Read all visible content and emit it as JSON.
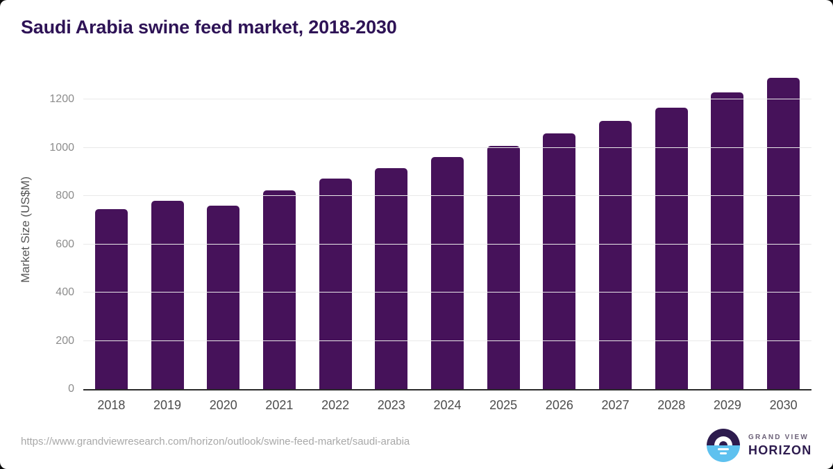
{
  "page": {
    "title": "Saudi Arabia swine feed market, 2018-2030",
    "source_url": "https://www.grandviewresearch.com/horizon/outlook/swine-feed-market/saudi-arabia"
  },
  "logo": {
    "line1": "GRAND VIEW",
    "line2": "HORIZON"
  },
  "colors": {
    "title": "#2e1356",
    "bar": "#46125a",
    "axis_line": "#2a2a2a",
    "gridline": "#e9e9e9",
    "y_tick_label": "#8c8c8c",
    "x_tick_label": "#4c4c4c",
    "y_axis_title": "#555555",
    "url_text": "#a8a8a8",
    "logo_dark": "#2d1b4e",
    "logo_blue": "#5ec1ef",
    "logo_gray_text": "#6b6077"
  },
  "chart_data": {
    "type": "bar",
    "title": "Saudi Arabia swine feed market, 2018-2030",
    "categories": [
      "2018",
      "2019",
      "2020",
      "2021",
      "2022",
      "2023",
      "2024",
      "2025",
      "2026",
      "2027",
      "2028",
      "2029",
      "2030"
    ],
    "values": [
      745,
      780,
      760,
      823,
      873,
      916,
      960,
      1008,
      1060,
      1112,
      1166,
      1228,
      1290
    ],
    "xlabel": "",
    "ylabel": "Market Size (US$M)",
    "yticks": [
      0,
      200,
      400,
      600,
      800,
      1000,
      1200
    ],
    "ylim": [
      0,
      1324
    ],
    "grid": true,
    "legend": false,
    "bar_color": "#46125a"
  }
}
